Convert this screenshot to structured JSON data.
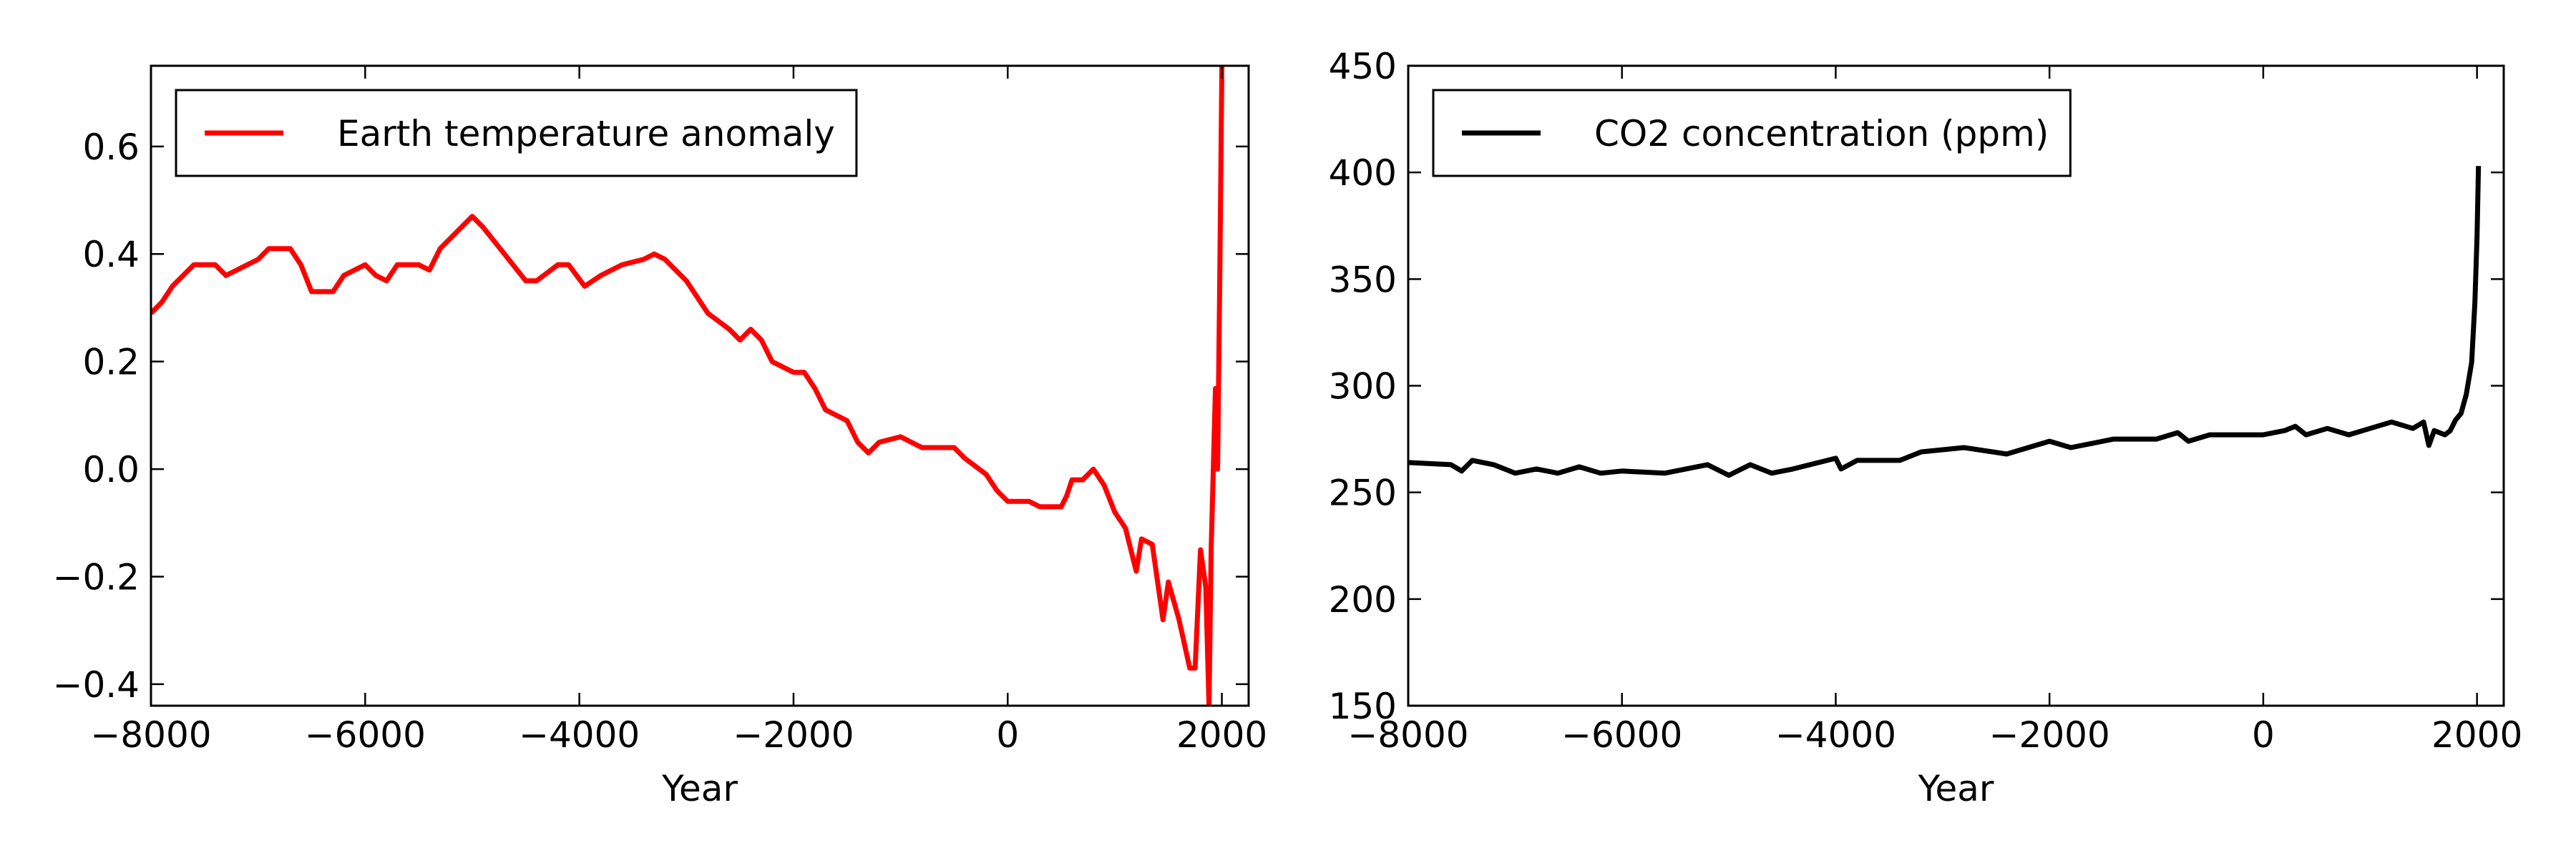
{
  "chart_data": [
    {
      "type": "line",
      "xlabel": "Year",
      "xlim": [
        -8000,
        2250
      ],
      "ylim": [
        -0.44,
        0.75
      ],
      "xticks": [
        {
          "value": -8000,
          "label": "−8000"
        },
        {
          "value": -6000,
          "label": "−6000"
        },
        {
          "value": -4000,
          "label": "−4000"
        },
        {
          "value": -2000,
          "label": "−2000"
        },
        0,
        2000
      ],
      "yticks": [
        {
          "value": -0.4,
          "label": "−0.4"
        },
        {
          "value": -0.2,
          "label": "−0.2"
        },
        {
          "value": 0,
          "label": "0.0"
        },
        0.2,
        0.4,
        0.6
      ],
      "legend": "upper left",
      "x": [
        -8000,
        -7900,
        -7800,
        -7600,
        -7400,
        -7300,
        -7100,
        -7000,
        -6900,
        -6700,
        -6600,
        -6500,
        -6300,
        -6200,
        -6000,
        -5900,
        -5800,
        -5700,
        -5500,
        -5400,
        -5300,
        -5100,
        -5000,
        -4900,
        -4700,
        -4500,
        -4400,
        -4200,
        -4100,
        -3950,
        -3800,
        -3600,
        -3400,
        -3300,
        -3200,
        -3000,
        -2800,
        -2600,
        -2500,
        -2400,
        -2300,
        -2200,
        -2000,
        -1900,
        -1800,
        -1700,
        -1500,
        -1400,
        -1300,
        -1200,
        -1000,
        -900,
        -800,
        -500,
        -400,
        -200,
        -100,
        0,
        200,
        300,
        500,
        550,
        600,
        700,
        800,
        900,
        1000,
        1100,
        1200,
        1250,
        1350,
        1400,
        1450,
        1500,
        1600,
        1700,
        1750,
        1800,
        1850,
        1880,
        1900,
        1940,
        1960,
        1980,
        2000
      ],
      "series": [
        {
          "name": "Earth temperature anomaly",
          "color": "#ff0000",
          "values": [
            0.29,
            0.31,
            0.34,
            0.38,
            0.38,
            0.36,
            0.38,
            0.39,
            0.41,
            0.41,
            0.38,
            0.33,
            0.33,
            0.36,
            0.38,
            0.36,
            0.35,
            0.38,
            0.38,
            0.37,
            0.41,
            0.45,
            0.47,
            0.45,
            0.4,
            0.35,
            0.35,
            0.38,
            0.38,
            0.34,
            0.36,
            0.38,
            0.39,
            0.4,
            0.39,
            0.35,
            0.29,
            0.26,
            0.24,
            0.26,
            0.24,
            0.2,
            0.18,
            0.18,
            0.15,
            0.11,
            0.09,
            0.05,
            0.03,
            0.05,
            0.06,
            0.05,
            0.04,
            0.04,
            0.02,
            -0.01,
            -0.04,
            -0.06,
            -0.06,
            -0.07,
            -0.07,
            -0.05,
            -0.02,
            -0.02,
            0.0,
            -0.03,
            -0.08,
            -0.11,
            -0.19,
            -0.13,
            -0.14,
            -0.21,
            -0.28,
            -0.21,
            -0.28,
            -0.37,
            -0.37,
            -0.15,
            -0.22,
            -0.44,
            -0.15,
            0.15,
            0.0,
            0.35,
            0.75
          ]
        }
      ]
    },
    {
      "type": "line",
      "xlabel": "Year",
      "xlim": [
        -8000,
        2250
      ],
      "ylim": [
        150,
        450
      ],
      "xticks": [
        {
          "value": -8000,
          "label": "−8000"
        },
        {
          "value": -6000,
          "label": "−6000"
        },
        {
          "value": -4000,
          "label": "−4000"
        },
        {
          "value": -2000,
          "label": "−2000"
        },
        0,
        2000
      ],
      "yticks": [
        150,
        200,
        250,
        300,
        350,
        400,
        450
      ],
      "legend": "upper left",
      "x": [
        -8000,
        -7600,
        -7500,
        -7400,
        -7200,
        -7000,
        -6800,
        -6600,
        -6400,
        -6200,
        -6000,
        -5600,
        -5200,
        -5000,
        -4800,
        -4600,
        -4400,
        -4000,
        -3950,
        -3800,
        -3400,
        -3200,
        -2800,
        -2400,
        -2000,
        -1800,
        -1400,
        -1000,
        -800,
        -700,
        -500,
        0,
        200,
        300,
        400,
        600,
        800,
        1000,
        1200,
        1400,
        1500,
        1550,
        1600,
        1700,
        1750,
        1800,
        1850,
        1900,
        1950,
        1980,
        2000,
        2014
      ],
      "series": [
        {
          "name": "CO2 concentration (ppm)",
          "color": "#000000",
          "values": [
            264,
            263,
            260,
            265,
            263,
            259,
            261,
            259,
            262,
            259,
            260,
            259,
            263,
            258,
            263,
            259,
            261,
            266,
            261,
            265,
            265,
            269,
            271,
            268,
            274,
            271,
            275,
            275,
            278,
            274,
            277,
            277,
            279,
            281,
            277,
            280,
            277,
            280,
            283,
            280,
            283,
            272,
            279,
            277,
            279,
            284,
            287,
            296,
            311,
            339,
            370,
            403
          ]
        }
      ]
    }
  ]
}
